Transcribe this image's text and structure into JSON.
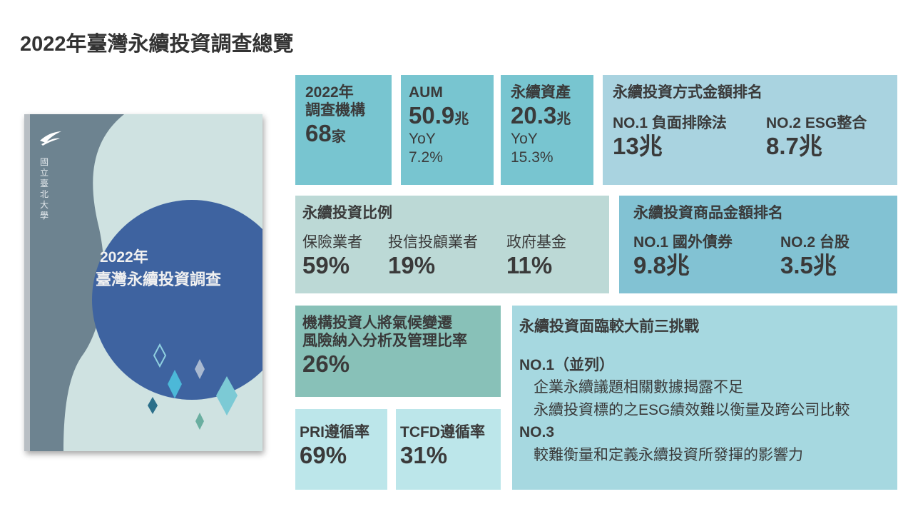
{
  "title": "2022年臺灣永續投資調查總覽",
  "cover": {
    "university": "國立臺北大學",
    "line1": "2022年",
    "line2": "臺灣永續投資調查"
  },
  "survey": {
    "label1": "2022年",
    "label2": "調查機構",
    "value": "68",
    "unit": "家"
  },
  "aum": {
    "label": "AUM",
    "value": "50.9",
    "unit": "兆",
    "yoy_label": "YoY",
    "yoy": "7.2%"
  },
  "sustainable_assets": {
    "label": "永續資產",
    "value": "20.3",
    "unit": "兆",
    "yoy_label": "YoY",
    "yoy": "15.3%"
  },
  "method_ranking": {
    "title": "永續投資方式金額排名",
    "items": [
      {
        "rank": "NO.1 負面排除法",
        "value": "13兆"
      },
      {
        "rank": "NO.2 ESG整合",
        "value": "8.7兆"
      }
    ]
  },
  "ratio": {
    "title": "永續投資比例",
    "items": [
      {
        "label": "保險業者",
        "value": "59%"
      },
      {
        "label": "投信投顧業者",
        "value": "19%"
      },
      {
        "label": "政府基金",
        "value": "11%"
      }
    ]
  },
  "product_ranking": {
    "title": "永續投資商品金額排名",
    "items": [
      {
        "rank": "NO.1 國外債券",
        "value": "9.8兆"
      },
      {
        "rank": "NO.2 台股",
        "value": "3.5兆"
      }
    ]
  },
  "climate": {
    "line1": "機構投資人將氣候變遷",
    "line2": "風險納入分析及管理比率",
    "value": "26%"
  },
  "pri": {
    "label": "PRI遵循率",
    "value": "69%"
  },
  "tcfd": {
    "label": "TCFD遵循率",
    "value": "31%"
  },
  "challenges": {
    "title": "永續投資面臨較大前三挑戰",
    "no1": "NO.1（並列）",
    "no1_items": [
      "企業永續議題相關數據揭露不足",
      "永續投資標的之ESG績效難以衡量及跨公司比較"
    ],
    "no3": "NO.3",
    "no3_items": [
      "較難衡量和定義永續投資所發揮的影響力"
    ]
  }
}
